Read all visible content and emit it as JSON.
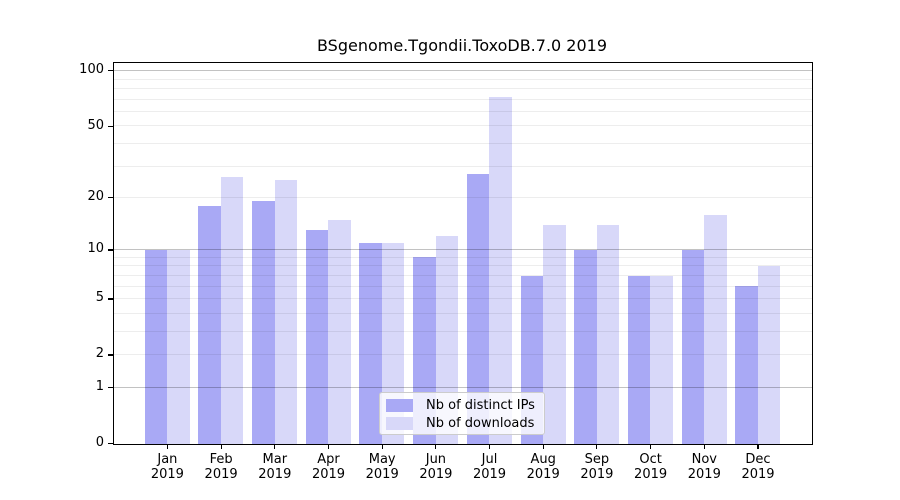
{
  "chart_data": {
    "type": "bar",
    "title": "BSgenome.Tgondii.ToxoDB.7.0 2019",
    "categories": [
      "Jan",
      "Feb",
      "Mar",
      "Apr",
      "May",
      "Jun",
      "Jul",
      "Aug",
      "Sep",
      "Oct",
      "Nov",
      "Dec"
    ],
    "x_year_label": "2019",
    "series": [
      {
        "name": "Nb of distinct IPs",
        "color": "#a9a9f5",
        "values": [
          10,
          18,
          19,
          13,
          11,
          9,
          27,
          7,
          10,
          7,
          10,
          6
        ]
      },
      {
        "name": "Nb of downloads",
        "color": "#d8d8f9",
        "values": [
          10,
          26,
          25,
          15,
          11,
          12,
          72,
          14,
          14,
          7,
          16,
          8
        ]
      }
    ],
    "y_scale": "log1p",
    "ylim": [
      0,
      110.6
    ],
    "y_ticks": [
      0,
      1,
      2,
      5,
      10,
      20,
      50,
      100
    ],
    "y_major_gridlines": [
      1,
      10,
      100
    ],
    "y_minor_gridlines": [
      2,
      3,
      4,
      5,
      6,
      7,
      8,
      9,
      20,
      30,
      40,
      50,
      60,
      70,
      80,
      90
    ],
    "grid": true,
    "legend_position": "bottom-center"
  },
  "colors": {
    "axis": "#000000",
    "grid_minor": "rgba(0,0,0,0.07)",
    "grid_major": "rgba(0,0,0,0.24)",
    "legend_border": "#cccccc",
    "legend_background": "rgba(255,255,255,0.8)"
  }
}
